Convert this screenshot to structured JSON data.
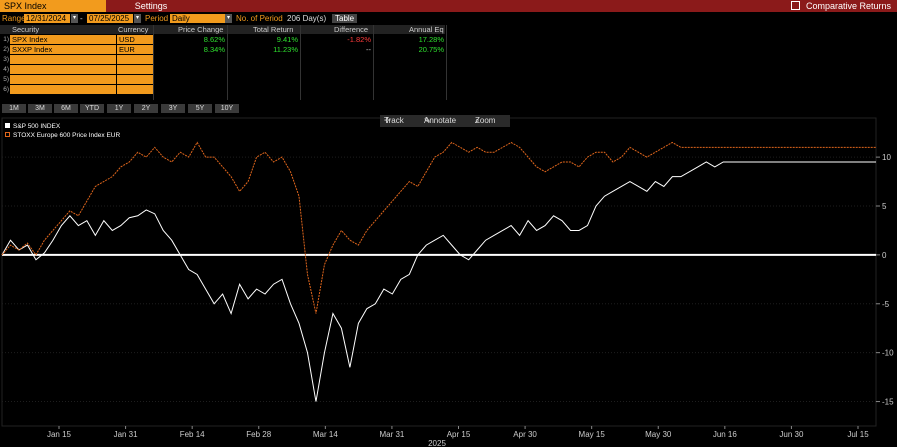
{
  "header": {
    "active_tab": "SPX Index",
    "settings_tab": "Settings",
    "comparative": "Comparative Returns"
  },
  "controls": {
    "range_label": "Range",
    "range_start": "12/31/2024",
    "range_end": "07/25/2025",
    "period_label": "Period",
    "period_value": "Daily",
    "nperiod_label": "No. of Period",
    "nperiod_value": "206 Day(s)",
    "table_button": "Table"
  },
  "table": {
    "headers": [
      "Security",
      "Currency",
      "Price Change",
      "Total Return",
      "Difference",
      "Annual Eq"
    ],
    "rows": [
      {
        "n": "1)",
        "security": "SPX Index",
        "currency": "USD",
        "price_change": "8.62%",
        "total_return": "9.41%",
        "difference": "-1.82%",
        "annual_eq": "17.28%"
      },
      {
        "n": "2)",
        "security": "SXXP Index",
        "currency": "EUR",
        "price_change": "8.34%",
        "total_return": "11.23%",
        "difference": "--",
        "annual_eq": "20.75%"
      },
      {
        "n": "3)",
        "security": "",
        "currency": "",
        "price_change": "",
        "total_return": "",
        "difference": "",
        "annual_eq": ""
      },
      {
        "n": "4)",
        "security": "",
        "currency": "",
        "price_change": "",
        "total_return": "",
        "difference": "",
        "annual_eq": ""
      },
      {
        "n": "5)",
        "security": "",
        "currency": "",
        "price_change": "",
        "total_return": "",
        "difference": "",
        "annual_eq": ""
      },
      {
        "n": "6)",
        "security": "",
        "currency": "",
        "price_change": "",
        "total_return": "",
        "difference": "",
        "annual_eq": ""
      }
    ]
  },
  "periods": [
    "1M",
    "3M",
    "6M",
    "YTD",
    "1Y",
    "2Y",
    "3Y",
    "5Y",
    "10Y"
  ],
  "toolbar": {
    "track": "Track",
    "annotate": "Annotate",
    "zoom": "Zoom"
  },
  "colors": {
    "accent": "#f29b1d",
    "topbar": "#8b1a1a",
    "positive": "#2ee02e",
    "negative": "#ff3b3b",
    "series1": "#ffffff",
    "series2": "#e0661c"
  },
  "chart_data": {
    "type": "line",
    "x_tick_labels": [
      "Jan 15",
      "Jan 31",
      "Feb 14",
      "Feb 28",
      "Mar 14",
      "Mar 31",
      "Apr 15",
      "Apr 30",
      "May 15",
      "May 30",
      "Jun 16",
      "Jun 30",
      "Jul 15"
    ],
    "x_year_label": "2025",
    "y_ticks": [
      10,
      5,
      0,
      -5,
      -10,
      -15
    ],
    "ylim": [
      -17.5,
      14
    ],
    "x": [
      0,
      2,
      4,
      6,
      8,
      10,
      12,
      14,
      16,
      18,
      20,
      22,
      24,
      26,
      28,
      30,
      32,
      34,
      36,
      38,
      40,
      42,
      44,
      46,
      48,
      50,
      52,
      54,
      56,
      58,
      60,
      62,
      64,
      66,
      68,
      70,
      72,
      74,
      76,
      78,
      80,
      82,
      84,
      86,
      88,
      90,
      92,
      94,
      96,
      98,
      100,
      102,
      104,
      106,
      108,
      110,
      112,
      114,
      116,
      118,
      120,
      122,
      124,
      126,
      128,
      130,
      132,
      134,
      136,
      138,
      140,
      142,
      144,
      146,
      148,
      150,
      152,
      154,
      156,
      158,
      160,
      162,
      164,
      166,
      168,
      170,
      172,
      174,
      176,
      178,
      180,
      182,
      184,
      186,
      188,
      190,
      192,
      194,
      196,
      198,
      200,
      202,
      204,
      206
    ],
    "series": [
      {
        "name": "S&P 500 INDEX",
        "color": "#ffffff",
        "values": [
          0,
          1.5,
          0.5,
          1.0,
          -0.5,
          0.2,
          1.5,
          3.0,
          4.0,
          3.0,
          3.5,
          2.0,
          3.5,
          2.5,
          3.0,
          3.8,
          4.0,
          4.6,
          4.2,
          2.5,
          1.5,
          0.0,
          -1.5,
          -2.0,
          -3.5,
          -5.0,
          -4.0,
          -6.0,
          -3.0,
          -4.5,
          -3.5,
          -4.0,
          -3.0,
          -2.5,
          -5.0,
          -7.0,
          -10.0,
          -15.0,
          -10.0,
          -6.0,
          -7.5,
          -11.5,
          -7.0,
          -5.5,
          -5.0,
          -3.5,
          -4.0,
          -2.5,
          -2.0,
          0.0,
          1.0,
          1.5,
          2.0,
          1.0,
          0.0,
          -0.5,
          0.5,
          1.5,
          2.0,
          2.5,
          3.0,
          2.0,
          3.5,
          2.5,
          3.0,
          4.0,
          3.5,
          2.5,
          2.5,
          3.0,
          5.0,
          6.0,
          6.5,
          7.0,
          7.5,
          7.0,
          6.5,
          7.5,
          7.0,
          8.0,
          8.0,
          8.5,
          9.0,
          9.5,
          9.0,
          9.5,
          9.5,
          9.5,
          9.5,
          9.5,
          9.5,
          9.5,
          9.5,
          9.5,
          9.5,
          9.5,
          9.5,
          9.5,
          9.5,
          9.5,
          9.5,
          9.5,
          9.5,
          9.5
        ]
      },
      {
        "name": "STOXX Europe 600 Price Index EUR",
        "color": "#e0661c",
        "values": [
          0,
          1.0,
          0.5,
          1.2,
          0.0,
          1.5,
          2.5,
          3.5,
          4.5,
          4.0,
          5.5,
          7.0,
          7.5,
          8.0,
          9.0,
          9.5,
          10.5,
          10.0,
          11.0,
          10.0,
          9.5,
          10.5,
          10.0,
          11.5,
          10.0,
          10.0,
          9.0,
          8.0,
          6.5,
          7.5,
          10.0,
          10.5,
          9.5,
          10.0,
          8.5,
          6.0,
          -2.0,
          -6.0,
          -1.0,
          1.0,
          2.5,
          1.5,
          1.0,
          2.5,
          3.5,
          4.5,
          5.5,
          6.5,
          7.5,
          7.0,
          8.5,
          10.0,
          10.5,
          11.5,
          11.0,
          10.5,
          11.0,
          10.5,
          10.5,
          11.0,
          11.5,
          11.0,
          10.0,
          9.0,
          8.5,
          9.0,
          9.5,
          9.5,
          9.0,
          10.0,
          10.5,
          10.5,
          9.5,
          10.0,
          11.0,
          10.5,
          10.0,
          10.5,
          11.0,
          11.5,
          11.0,
          11.0,
          11.0,
          11.0,
          11.0,
          11.0,
          11.0,
          11.0,
          11.0,
          11.0,
          11.0,
          11.0,
          11.0,
          11.0,
          11.0,
          11.0,
          11.0,
          11.0,
          11.0,
          11.0,
          11.0,
          11.0,
          11.0,
          11.0
        ]
      }
    ],
    "zero_line": 0
  }
}
